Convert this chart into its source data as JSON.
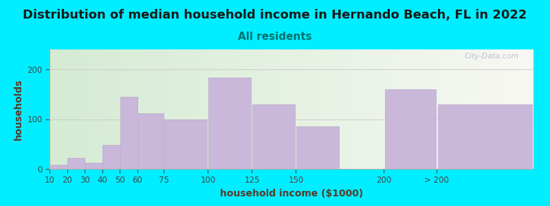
{
  "title": "Distribution of median household income in Hernando Beach, FL in 2022",
  "subtitle": "All residents",
  "xlabel": "household income ($1000)",
  "ylabel": "households",
  "bar_color": "#c9b8d9",
  "bar_edgecolor": "#b8a8cc",
  "background_outer": "#00eeff",
  "watermark": "City-Data.com",
  "categories": [
    "10",
    "20",
    "30",
    "40",
    "50",
    "60",
    "75",
    "100",
    "125",
    "150",
    "200",
    "> 200"
  ],
  "left_edges": [
    10,
    20,
    30,
    40,
    50,
    60,
    75,
    100,
    125,
    150,
    200,
    230
  ],
  "widths": [
    10,
    10,
    10,
    10,
    10,
    15,
    25,
    25,
    25,
    25,
    30,
    55
  ],
  "values": [
    8,
    22,
    12,
    48,
    145,
    112,
    100,
    183,
    130,
    85,
    160,
    130
  ],
  "ylim": [
    0,
    240
  ],
  "yticks": [
    0,
    100,
    200
  ],
  "xlim": [
    10,
    285
  ],
  "title_fontsize": 13,
  "subtitle_fontsize": 11,
  "axis_label_fontsize": 10,
  "tick_fontsize": 8.5,
  "title_color": "#1a1a1a",
  "subtitle_color": "#007070",
  "axis_label_color": "#5a3a2a",
  "tick_color": "#444444",
  "watermark_color": "#b0b8c8",
  "grid_color": "#cccccc"
}
